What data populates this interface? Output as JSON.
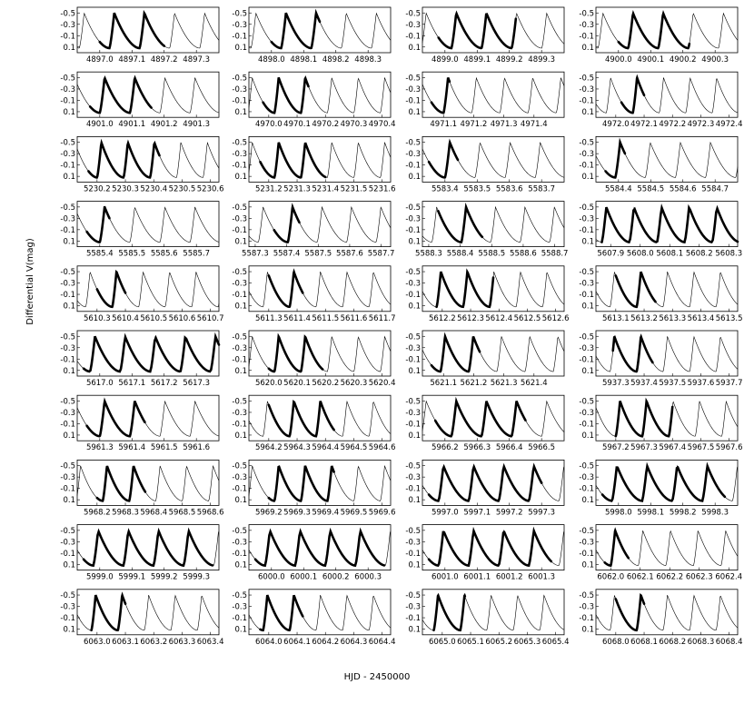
{
  "chart_data": {
    "type": "line",
    "xlabel": "HJD - 2450000",
    "ylabel": "Differential V(mag)",
    "y_ticks": [
      "-0.5",
      "-0.3",
      "-0.1",
      "0.1"
    ],
    "ylim": [
      0.2,
      -0.6
    ],
    "y_inverted": true,
    "grid": false,
    "pulsation_period_days": 0.0935,
    "panels": [
      {
        "xticks": [
          "4897.0",
          "4897.1",
          "4897.2",
          "4897.3"
        ],
        "xlim": [
          4896.93,
          4897.37
        ],
        "obs_range": [
          4897.0,
          4897.2
        ],
        "phase0": 4897.03
      },
      {
        "xticks": [
          "4898.0",
          "4898.1",
          "4898.2",
          "4898.3"
        ],
        "xlim": [
          4897.93,
          4898.37
        ],
        "obs_range": [
          4898.0,
          4898.15
        ],
        "phase0": 4898.03
      },
      {
        "xticks": [
          "4899.0",
          "4899.1",
          "4899.2",
          "4899.3"
        ],
        "xlim": [
          4898.93,
          4899.37
        ],
        "obs_range": [
          4898.98,
          4899.22
        ],
        "phase0": 4899.02
      },
      {
        "xticks": [
          "4900.0",
          "4900.1",
          "4900.2",
          "4900.3"
        ],
        "xlim": [
          4899.93,
          4900.37
        ],
        "obs_range": [
          4900.0,
          4900.22
        ],
        "phase0": 4900.03
      },
      {
        "xticks": [
          "4901.0",
          "4901.1",
          "4901.2",
          "4901.3"
        ],
        "xlim": [
          4900.93,
          4901.37
        ],
        "obs_range": [
          4900.97,
          4901.16
        ],
        "phase0": 4901.0
      },
      {
        "xticks": [
          "4970.0",
          "4970.1",
          "4970.2",
          "4970.3",
          "4970.4"
        ],
        "xlim": [
          4969.93,
          4970.43
        ],
        "obs_range": [
          4969.98,
          4970.14
        ],
        "phase0": 4970.02
      },
      {
        "xticks": [
          "4971.1",
          "4971.2",
          "4971.3",
          "4971.4"
        ],
        "xlim": [
          4971.03,
          4971.5
        ],
        "obs_range": [
          4971.06,
          4971.12
        ],
        "phase0": 4971.1
      },
      {
        "xticks": [
          "4972.0",
          "4972.1",
          "4972.2",
          "4972.3",
          "4972.4"
        ],
        "xlim": [
          4971.93,
          4972.43
        ],
        "obs_range": [
          4972.02,
          4972.1
        ],
        "phase0": 4972.06
      },
      {
        "xticks": [
          "5230.2",
          "5230.3",
          "5230.4",
          "5230.5",
          "5230.6"
        ],
        "xlim": [
          5230.13,
          5230.63
        ],
        "obs_range": [
          5230.17,
          5230.42
        ],
        "phase0": 5230.2
      },
      {
        "xticks": [
          "5231.2",
          "5231.3",
          "5231.4",
          "5231.5",
          "5231.6"
        ],
        "xlim": [
          5231.13,
          5231.63
        ],
        "obs_range": [
          5231.17,
          5231.4
        ],
        "phase0": 5231.22
      },
      {
        "xticks": [
          "5583.4",
          "5583.5",
          "5583.6",
          "5583.7"
        ],
        "xlim": [
          5583.33,
          5583.77
        ],
        "obs_range": [
          5583.35,
          5583.44
        ],
        "phase0": 5583.4
      },
      {
        "xticks": [
          "5584.4",
          "5584.5",
          "5584.6",
          "5584.7"
        ],
        "xlim": [
          5584.33,
          5584.77
        ],
        "obs_range": [
          5584.36,
          5584.42
        ],
        "phase0": 5584.39
      },
      {
        "xticks": [
          "5585.4",
          "5585.5",
          "5585.6",
          "5585.7"
        ],
        "xlim": [
          5585.33,
          5585.77
        ],
        "obs_range": [
          5585.36,
          5585.43
        ],
        "phase0": 5585.4
      },
      {
        "xticks": [
          "5587.3",
          "5587.4",
          "5587.5",
          "5587.6",
          "5587.7"
        ],
        "xlim": [
          5587.28,
          5587.73
        ],
        "obs_range": [
          5587.36,
          5587.44
        ],
        "phase0": 5587.31
      },
      {
        "xticks": [
          "5588.3",
          "5588.4",
          "5588.5",
          "5588.6",
          "5588.7"
        ],
        "xlim": [
          5588.28,
          5588.73
        ],
        "obs_range": [
          5588.33,
          5588.47
        ],
        "phase0": 5588.31
      },
      {
        "xticks": [
          "5607.9",
          "5608.0",
          "5608.1",
          "5608.2",
          "5608.3"
        ],
        "xlim": [
          5607.85,
          5608.33
        ],
        "obs_range": [
          5607.87,
          5608.33
        ],
        "phase0": 5607.87
      },
      {
        "xticks": [
          "5610.3",
          "5610.4",
          "5610.5",
          "5610.6",
          "5610.7"
        ],
        "xlim": [
          5610.23,
          5610.73
        ],
        "obs_range": [
          5610.3,
          5610.4
        ],
        "phase0": 5610.26
      },
      {
        "xticks": [
          "5611.3",
          "5611.4",
          "5611.5",
          "5611.6",
          "5611.7"
        ],
        "xlim": [
          5611.23,
          5611.73
        ],
        "obs_range": [
          5611.3,
          5611.42
        ],
        "phase0": 5611.28
      },
      {
        "xticks": [
          "5612.2",
          "5612.3",
          "5612.4",
          "5612.5",
          "5612.6"
        ],
        "xlim": [
          5612.13,
          5612.63
        ],
        "obs_range": [
          5612.18,
          5612.38
        ],
        "phase0": 5612.18
      },
      {
        "xticks": [
          "5613.1",
          "5613.2",
          "5613.3",
          "5613.4",
          "5613.5"
        ],
        "xlim": [
          5613.03,
          5613.53
        ],
        "obs_range": [
          5613.1,
          5613.24
        ],
        "phase0": 5613.08
      },
      {
        "xticks": [
          "5617.0",
          "5617.1",
          "5617.2",
          "5617.3"
        ],
        "xlim": [
          5616.93,
          5617.37
        ],
        "obs_range": [
          5616.95,
          5617.37
        ],
        "phase0": 5616.97
      },
      {
        "xticks": [
          "5620.0",
          "5620.1",
          "5620.2",
          "5620.3",
          "5620.4"
        ],
        "xlim": [
          5619.93,
          5620.43
        ],
        "obs_range": [
          5620.0,
          5620.19
        ],
        "phase0": 5620.02
      },
      {
        "xticks": [
          "5621.1",
          "5621.2",
          "5621.3",
          "5621.4"
        ],
        "xlim": [
          5621.03,
          5621.5
        ],
        "obs_range": [
          5621.06,
          5621.22
        ],
        "phase0": 5621.09
      },
      {
        "xticks": [
          "5937.3",
          "5937.4",
          "5937.5",
          "5937.6",
          "5937.7"
        ],
        "xlim": [
          5937.23,
          5937.73
        ],
        "obs_range": [
          5937.29,
          5937.43
        ],
        "phase0": 5937.28
      },
      {
        "xticks": [
          "5961.3",
          "5961.4",
          "5961.5",
          "5961.6"
        ],
        "xlim": [
          5961.23,
          5961.67
        ],
        "obs_range": [
          5961.26,
          5961.44
        ],
        "phase0": 5961.3
      },
      {
        "xticks": [
          "5964.2",
          "5964.3",
          "5964.4",
          "5964.5",
          "5964.6"
        ],
        "xlim": [
          5964.13,
          5964.63
        ],
        "obs_range": [
          5964.2,
          5964.43
        ],
        "phase0": 5964.18
      },
      {
        "xticks": [
          "5966.2",
          "5966.3",
          "5966.4",
          "5966.5"
        ],
        "xlim": [
          5966.13,
          5966.57
        ],
        "obs_range": [
          5966.17,
          5966.45
        ],
        "phase0": 5966.22
      },
      {
        "xticks": [
          "5967.2",
          "5967.3",
          "5967.4",
          "5967.5",
          "5967.6"
        ],
        "xlim": [
          5967.13,
          5967.63
        ],
        "obs_range": [
          5967.2,
          5967.4
        ],
        "phase0": 5967.2
      },
      {
        "xticks": [
          "5968.2",
          "5968.3",
          "5968.4",
          "5968.5",
          "5968.6"
        ],
        "xlim": [
          5968.13,
          5968.63
        ],
        "obs_range": [
          5968.2,
          5968.37
        ],
        "phase0": 5968.22
      },
      {
        "xticks": [
          "5969.2",
          "5969.3",
          "5969.4",
          "5969.5",
          "5969.6"
        ],
        "xlim": [
          5969.13,
          5969.63
        ],
        "obs_range": [
          5969.2,
          5969.43
        ],
        "phase0": 5969.22
      },
      {
        "xticks": [
          "5997.0",
          "5997.1",
          "5997.2",
          "5997.3"
        ],
        "xlim": [
          5996.93,
          5997.37
        ],
        "obs_range": [
          5996.95,
          5997.3
        ],
        "phase0": 5996.98
      },
      {
        "xticks": [
          "5998.0",
          "5998.1",
          "5998.2",
          "5998.3"
        ],
        "xlim": [
          5997.93,
          5998.37
        ],
        "obs_range": [
          5997.95,
          5998.33
        ],
        "phase0": 5997.98
      },
      {
        "xticks": [
          "5999.0",
          "5999.1",
          "5999.2",
          "5999.3"
        ],
        "xlim": [
          5998.93,
          5999.37
        ],
        "obs_range": [
          5998.95,
          5999.35
        ],
        "phase0": 5998.98
      },
      {
        "xticks": [
          "6000.0",
          "6000.1",
          "6000.2",
          "6000.3"
        ],
        "xlim": [
          5999.93,
          6000.37
        ],
        "obs_range": [
          5999.95,
          6000.35
        ],
        "phase0": 5999.98
      },
      {
        "xticks": [
          "6001.0",
          "6001.1",
          "6001.2",
          "6001.3"
        ],
        "xlim": [
          6000.93,
          6001.37
        ],
        "obs_range": [
          6000.95,
          6001.33
        ],
        "phase0": 6000.98
      },
      {
        "xticks": [
          "6062.0",
          "6062.1",
          "6062.2",
          "6062.3",
          "6062.4"
        ],
        "xlim": [
          6061.95,
          6062.43
        ],
        "obs_range": [
          6061.98,
          6062.06
        ],
        "phase0": 6062.0
      },
      {
        "xticks": [
          "6063.0",
          "6063.1",
          "6063.2",
          "6063.3",
          "6063.4"
        ],
        "xlim": [
          6062.93,
          6063.43
        ],
        "obs_range": [
          6062.98,
          6063.1
        ],
        "phase0": 6062.98
      },
      {
        "xticks": [
          "6064.0",
          "6064.1",
          "6064.2",
          "6064.3",
          "6064.4"
        ],
        "xlim": [
          6063.93,
          6064.43
        ],
        "obs_range": [
          6063.97,
          6064.12
        ],
        "phase0": 6063.98
      },
      {
        "xticks": [
          "6065.0",
          "6065.1",
          "6065.2",
          "6065.3",
          "6065.4"
        ],
        "xlim": [
          6064.93,
          6065.43
        ],
        "obs_range": [
          6064.97,
          6065.08
        ],
        "phase0": 6064.97
      },
      {
        "xticks": [
          "6068.0",
          "6068.1",
          "6068.2",
          "6068.3",
          "6068.4"
        ],
        "xlim": [
          6067.93,
          6068.43
        ],
        "obs_range": [
          6068.0,
          6068.1
        ],
        "phase0": 6067.98
      }
    ]
  }
}
